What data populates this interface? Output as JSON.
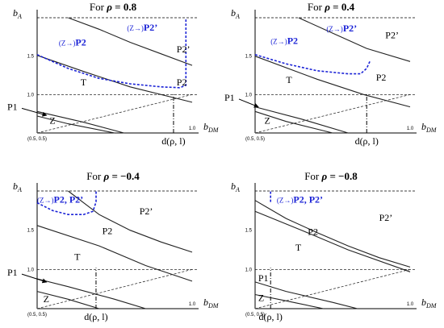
{
  "chart_data": [
    {
      "type": "line",
      "title_prefix": "For ",
      "rho_symbol": "ρ",
      "rho_text": " = 0.8",
      "ylabel": "b",
      "ylabel_sub": "A",
      "xlabel": "b",
      "xlabel_sub": "DM",
      "origin_label": "(0.5, 0.5)",
      "x_end_label": "1.0",
      "yticks": [
        {
          "v": 1.0,
          "label": "1.0"
        },
        {
          "v": 1.5,
          "label": "1.5"
        }
      ],
      "xlim": [
        0.5,
        1.0
      ],
      "ylim": [
        0.5,
        2.0
      ],
      "hlines": [
        1.0,
        2.0
      ],
      "d_value": 0.94,
      "d_label": "d(ρ, l)",
      "regions": [
        {
          "label": "T",
          "x": 0.64,
          "y": 1.12
        },
        {
          "label": "Z",
          "x": 0.54,
          "y": 0.62
        },
        {
          "label": "P2",
          "x": 0.95,
          "y": 1.12
        },
        {
          "label": "P2’",
          "x": 0.95,
          "y": 1.55
        }
      ],
      "blue_labels": [
        {
          "prefix": "(Z→)",
          "main": "P2",
          "x": 0.57,
          "y": 1.64
        },
        {
          "prefix": "(Z→)",
          "main": "P2’",
          "x": 0.79,
          "y": 1.83
        }
      ],
      "p1": {
        "label": "P1",
        "x": 0.03,
        "y": 0.8,
        "ax": 0.53,
        "ay": 0.73
      },
      "series": [
        {
          "style": "solid",
          "points": [
            [
              0.5,
              0.78
            ],
            [
              0.65,
              0.64
            ],
            [
              0.78,
              0.5
            ]
          ]
        },
        {
          "style": "solid",
          "points": [
            [
              0.5,
              0.72
            ],
            [
              0.6,
              0.62
            ],
            [
              0.75,
              0.5
            ]
          ]
        },
        {
          "style": "solid",
          "points": [
            [
              0.5,
              1.51
            ],
            [
              0.65,
              1.3
            ],
            [
              0.8,
              1.1
            ],
            [
              1.0,
              0.9
            ]
          ]
        },
        {
          "style": "solid",
          "points": [
            [
              0.6,
              2.0
            ],
            [
              0.7,
              1.85
            ],
            [
              0.8,
              1.68
            ],
            [
              0.9,
              1.53
            ],
            [
              1.0,
              1.38
            ]
          ]
        },
        {
          "style": "dashed",
          "points": [
            [
              0.5,
              0.5
            ],
            [
              1.0,
              1.0
            ]
          ]
        },
        {
          "style": "blue-dashed",
          "points": [
            [
              0.5,
              1.52
            ],
            [
              0.6,
              1.34
            ],
            [
              0.7,
              1.21
            ],
            [
              0.8,
              1.14
            ],
            [
              0.9,
              1.1
            ],
            [
              0.96,
              1.09
            ],
            [
              0.98,
              1.12
            ],
            [
              0.98,
              2.0
            ]
          ]
        }
      ]
    },
    {
      "type": "line",
      "title_prefix": "For ",
      "rho_symbol": "ρ",
      "rho_text": " = 0.4",
      "ylabel": "b",
      "ylabel_sub": "A",
      "xlabel": "b",
      "xlabel_sub": "DM",
      "origin_label": "(0.5, 0.5)",
      "x_end_label": "1.0",
      "yticks": [
        {
          "v": 1.0,
          "label": "1.0"
        },
        {
          "v": 1.5,
          "label": "1.5"
        }
      ],
      "xlim": [
        0.5,
        1.0
      ],
      "ylim": [
        0.5,
        2.0
      ],
      "hlines": [
        1.0,
        2.0
      ],
      "d_value": 0.86,
      "d_label": "d(ρ, l)",
      "regions": [
        {
          "label": "T",
          "x": 0.6,
          "y": 1.15
        },
        {
          "label": "Z",
          "x": 0.53,
          "y": 0.62
        },
        {
          "label": "P2",
          "x": 0.89,
          "y": 1.18
        },
        {
          "label": "P2’",
          "x": 0.92,
          "y": 1.73
        }
      ],
      "blue_labels": [
        {
          "prefix": "(Z→)",
          "main": "P2",
          "x": 0.55,
          "y": 1.66
        },
        {
          "prefix": "(Z→)",
          "main": "P2’",
          "x": 0.73,
          "y": 1.82
        }
      ],
      "p1": {
        "label": "P1",
        "x": 0.02,
        "y": 0.92,
        "ax": 0.51,
        "ay": 0.84
      },
      "series": [
        {
          "style": "solid",
          "points": [
            [
              0.5,
              0.84
            ],
            [
              0.65,
              0.68
            ],
            [
              0.8,
              0.5
            ]
          ]
        },
        {
          "style": "solid",
          "points": [
            [
              0.5,
              0.78
            ],
            [
              0.6,
              0.65
            ],
            [
              0.75,
              0.5
            ]
          ]
        },
        {
          "style": "solid",
          "points": [
            [
              0.5,
              1.5
            ],
            [
              0.7,
              1.2
            ],
            [
              0.85,
              1.0
            ],
            [
              1.0,
              0.84
            ]
          ]
        },
        {
          "style": "solid",
          "points": [
            [
              0.64,
              2.0
            ],
            [
              0.75,
              1.8
            ],
            [
              0.86,
              1.6
            ],
            [
              1.0,
              1.43
            ]
          ]
        },
        {
          "style": "dashed",
          "points": [
            [
              0.5,
              0.5
            ],
            [
              1.0,
              1.0
            ]
          ]
        },
        {
          "style": "blue-dashed",
          "points": [
            [
              0.5,
              1.52
            ],
            [
              0.6,
              1.4
            ],
            [
              0.7,
              1.31
            ],
            [
              0.8,
              1.27
            ],
            [
              0.84,
              1.27
            ],
            [
              0.86,
              1.34
            ],
            [
              0.87,
              1.43
            ]
          ]
        }
      ]
    },
    {
      "type": "line",
      "title_prefix": "For ",
      "rho_symbol": "ρ",
      "rho_text": " = −0.4",
      "ylabel": "b",
      "ylabel_sub": "A",
      "xlabel": "b",
      "xlabel_sub": "DM",
      "origin_label": "(0.5, 0.5)",
      "x_end_label": "1.0",
      "yticks": [
        {
          "v": 1.0,
          "label": "1.0"
        },
        {
          "v": 1.5,
          "label": "1.5"
        }
      ],
      "xlim": [
        0.5,
        1.0
      ],
      "ylim": [
        0.5,
        2.0
      ],
      "hlines": [
        1.0,
        2.0
      ],
      "d_value": 0.69,
      "d_label": "d(ρ, l)",
      "regions": [
        {
          "label": "T",
          "x": 0.62,
          "y": 1.12
        },
        {
          "label": "Z",
          "x": 0.52,
          "y": 0.58
        },
        {
          "label": "P2",
          "x": 0.71,
          "y": 1.45
        },
        {
          "label": "P2’",
          "x": 0.83,
          "y": 1.7
        }
      ],
      "blue_labels": [
        {
          "prefix": "(Z→)",
          "main": "P2, P2’",
          "x": 0.5,
          "y": 1.85
        }
      ],
      "p1": {
        "label": "P1",
        "x": 0.03,
        "y": 0.92,
        "ax": 0.53,
        "ay": 0.84
      },
      "series": [
        {
          "style": "solid",
          "points": [
            [
              0.5,
              0.88
            ],
            [
              0.6,
              0.78
            ],
            [
              0.75,
              0.62
            ],
            [
              0.85,
              0.5
            ]
          ]
        },
        {
          "style": "solid",
          "points": [
            [
              0.5,
              0.72
            ],
            [
              0.6,
              0.62
            ],
            [
              0.7,
              0.5
            ]
          ]
        },
        {
          "style": "solid",
          "points": [
            [
              0.5,
              1.56
            ],
            [
              0.7,
              1.3
            ],
            [
              0.85,
              1.05
            ],
            [
              1.0,
              0.85
            ]
          ]
        },
        {
          "style": "solid",
          "points": [
            [
              0.6,
              2.0
            ],
            [
              0.7,
              1.7
            ],
            [
              0.8,
              1.5
            ],
            [
              0.9,
              1.35
            ],
            [
              1.0,
              1.22
            ]
          ]
        },
        {
          "style": "dashed",
          "points": [
            [
              0.5,
              0.5
            ],
            [
              1.0,
              1.0
            ]
          ]
        },
        {
          "style": "blue-dashed",
          "points": [
            [
              0.5,
              1.85
            ],
            [
              0.55,
              1.75
            ],
            [
              0.6,
              1.7
            ],
            [
              0.65,
              1.7
            ],
            [
              0.68,
              1.74
            ],
            [
              0.69,
              1.86
            ],
            [
              0.69,
              2.0
            ]
          ]
        }
      ]
    },
    {
      "type": "line",
      "title_prefix": "For ",
      "rho_symbol": "ρ",
      "rho_text": " = −0.8",
      "ylabel": "b",
      "ylabel_sub": "A",
      "xlabel": "b",
      "xlabel_sub": "DM",
      "origin_label": "(0.5, 0.5)",
      "x_end_label": "1.0",
      "yticks": [
        {
          "v": 1.0,
          "label": "1.0"
        },
        {
          "v": 1.5,
          "label": "1.5"
        }
      ],
      "xlim": [
        0.5,
        1.0
      ],
      "ylim": [
        0.5,
        2.0
      ],
      "hlines": [
        1.0,
        2.0
      ],
      "d_value": 0.55,
      "d_label": "d(ρ, l)",
      "regions": [
        {
          "label": "T",
          "x": 0.63,
          "y": 1.24
        },
        {
          "label": "Z",
          "x": 0.51,
          "y": 0.6
        },
        {
          "label": "P2",
          "x": 0.67,
          "y": 1.44
        },
        {
          "label": "P2’",
          "x": 0.9,
          "y": 1.62
        }
      ],
      "blue_labels": [
        {
          "prefix": "(Z→)",
          "main": "P2, P2’",
          "x": 0.57,
          "y": 1.85
        }
      ],
      "p1": {
        "label": "P1",
        "x": 0.51,
        "y": 0.85,
        "ax": 0.5,
        "ay": 0.85
      },
      "series": [
        {
          "style": "solid",
          "points": [
            [
              0.5,
              0.84
            ],
            [
              0.6,
              0.72
            ],
            [
              0.75,
              0.58
            ],
            [
              0.83,
              0.5
            ]
          ]
        },
        {
          "style": "solid",
          "points": [
            [
              0.5,
              0.68
            ],
            [
              0.6,
              0.6
            ],
            [
              0.72,
              0.5
            ]
          ]
        },
        {
          "style": "solid",
          "points": [
            [
              0.5,
              1.74
            ],
            [
              0.65,
              1.5
            ],
            [
              0.8,
              1.25
            ],
            [
              1.0,
              0.97
            ]
          ]
        },
        {
          "style": "solid",
          "points": [
            [
              0.5,
              1.88
            ],
            [
              0.6,
              1.65
            ],
            [
              0.7,
              1.47
            ],
            [
              0.8,
              1.3
            ],
            [
              0.9,
              1.15
            ],
            [
              1.0,
              1.03
            ]
          ]
        },
        {
          "style": "dashed",
          "points": [
            [
              0.5,
              0.5
            ],
            [
              1.0,
              1.0
            ]
          ]
        },
        {
          "style": "blue-dashed",
          "points": [
            [
              0.55,
              1.86
            ],
            [
              0.55,
              2.0
            ]
          ]
        }
      ]
    }
  ]
}
